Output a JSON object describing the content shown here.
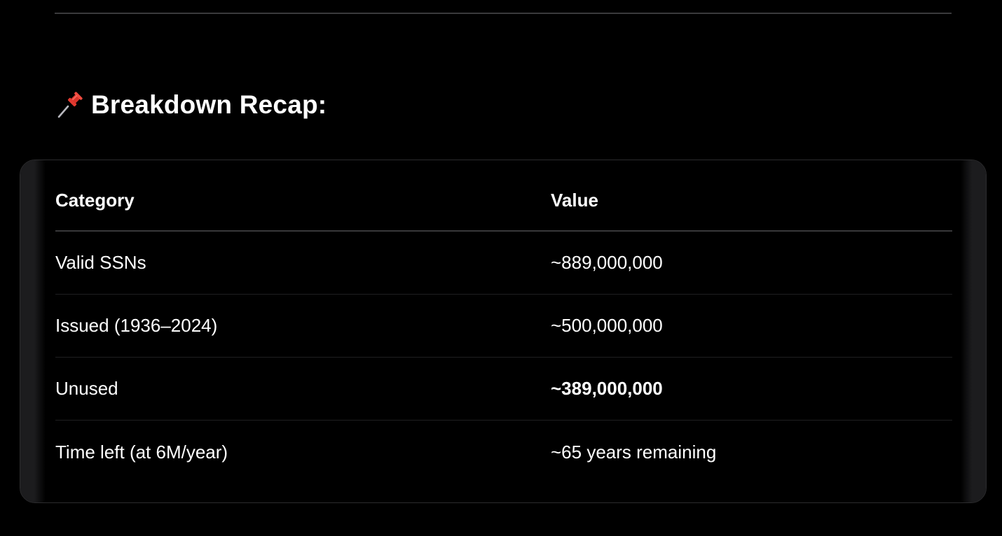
{
  "section": {
    "heading": "Breakdown Recap:",
    "heading_icon": "pushpin-icon"
  },
  "table": {
    "columns": [
      "Category",
      "Value"
    ],
    "rows": [
      {
        "category": "Valid SSNs",
        "value": "~889,000,000",
        "emphasis": false
      },
      {
        "category": "Issued (1936–2024)",
        "value": "~500,000,000",
        "emphasis": false
      },
      {
        "category": "Unused",
        "value": "~389,000,000",
        "emphasis": true
      },
      {
        "category": "Time left (at 6M/year)",
        "value": "~65 years remaining",
        "emphasis": false
      }
    ]
  },
  "colors": {
    "background": "#000000",
    "text": "#ffffff",
    "pin_red": "#d9342b"
  }
}
